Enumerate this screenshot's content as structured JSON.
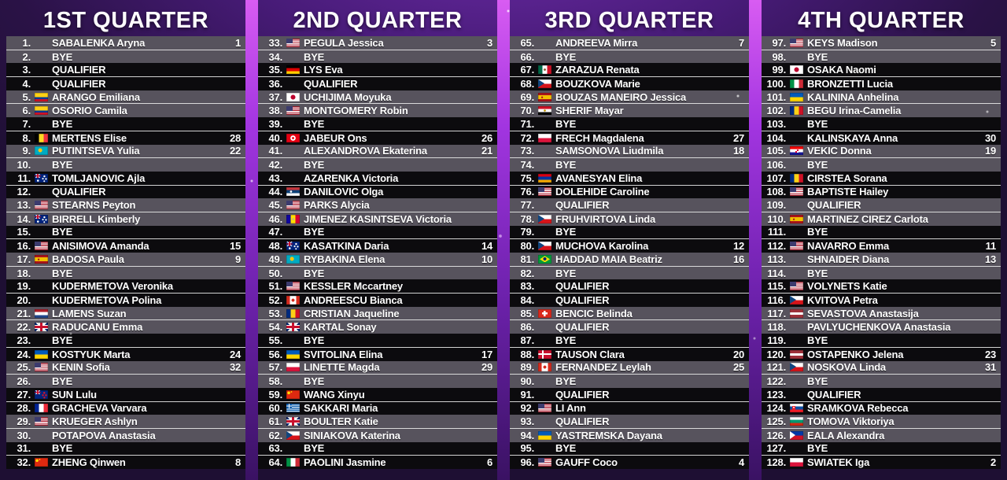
{
  "colors": {
    "row_light": "#57535d",
    "row_dark": "#0c0b0e",
    "pair_divider": "#e8e8e8",
    "background_purple": "#2a1246",
    "gap_beam_purple": "#a235e0",
    "text": "#ffffff"
  },
  "flag_countries": {
    "us": "United States",
    "gb": "Great Britain",
    "au": "Australia",
    "nz": "New Zealand",
    "co": "Colombia",
    "be": "Belgium",
    "kz": "Kazakhstan",
    "es": "Spain",
    "nl": "Netherlands",
    "ua": "Ukraine",
    "fr": "France",
    "cn": "China",
    "de": "Germany",
    "jp": "Japan",
    "tn": "Tunisia",
    "rs": "Serbia",
    "ad": "Andorra",
    "ca": "Canada",
    "ro": "Romania",
    "pl": "Poland",
    "gr": "Greece",
    "cz": "Czechia",
    "it": "Italy",
    "mx": "Mexico",
    "eg": "Egypt",
    "am": "Armenia",
    "br": "Brazil",
    "ch": "Switzerland",
    "dk": "Denmark",
    "hr": "Croatia",
    "lv": "Latvia",
    "sk": "Slovakia",
    "bg": "Bulgaria",
    "ph": "Philippines"
  },
  "board": {
    "quarters": [
      {
        "title": "1ST QUARTER",
        "rows": [
          {
            "pos": "1.",
            "flag": "",
            "name": "SABALENKA Aryna",
            "seed": "1"
          },
          {
            "pos": "2.",
            "flag": "",
            "name": "BYE",
            "seed": ""
          },
          {
            "pos": "3.",
            "flag": "",
            "name": "QUALIFIER",
            "seed": ""
          },
          {
            "pos": "4.",
            "flag": "",
            "name": "QUALIFIER",
            "seed": ""
          },
          {
            "pos": "5.",
            "flag": "co",
            "name": "ARANGO Emiliana",
            "seed": ""
          },
          {
            "pos": "6.",
            "flag": "co",
            "name": "OSORIO Camila",
            "seed": ""
          },
          {
            "pos": "7.",
            "flag": "",
            "name": "BYE",
            "seed": ""
          },
          {
            "pos": "8.",
            "flag": "be",
            "name": "MERTENS Elise",
            "seed": "28"
          },
          {
            "pos": "9.",
            "flag": "kz",
            "name": "PUTINTSEVA Yulia",
            "seed": "22"
          },
          {
            "pos": "10.",
            "flag": "",
            "name": "BYE",
            "seed": ""
          },
          {
            "pos": "11.",
            "flag": "au",
            "name": "TOMLJANOVIC Ajla",
            "seed": ""
          },
          {
            "pos": "12.",
            "flag": "",
            "name": "QUALIFIER",
            "seed": ""
          },
          {
            "pos": "13.",
            "flag": "us",
            "name": "STEARNS Peyton",
            "seed": ""
          },
          {
            "pos": "14.",
            "flag": "au",
            "name": "BIRRELL Kimberly",
            "seed": ""
          },
          {
            "pos": "15.",
            "flag": "",
            "name": "BYE",
            "seed": ""
          },
          {
            "pos": "16.",
            "flag": "us",
            "name": "ANISIMOVA Amanda",
            "seed": "15"
          },
          {
            "pos": "17.",
            "flag": "es",
            "name": "BADOSA Paula",
            "seed": "9"
          },
          {
            "pos": "18.",
            "flag": "",
            "name": "BYE",
            "seed": ""
          },
          {
            "pos": "19.",
            "flag": "",
            "name": "KUDERMETOVA Veronika",
            "seed": ""
          },
          {
            "pos": "20.",
            "flag": "",
            "name": "KUDERMETOVA Polina",
            "seed": ""
          },
          {
            "pos": "21.",
            "flag": "nl",
            "name": "LAMENS Suzan",
            "seed": ""
          },
          {
            "pos": "22.",
            "flag": "gb",
            "name": "RADUCANU Emma",
            "seed": ""
          },
          {
            "pos": "23.",
            "flag": "",
            "name": "BYE",
            "seed": ""
          },
          {
            "pos": "24.",
            "flag": "ua",
            "name": "KOSTYUK Marta",
            "seed": "24"
          },
          {
            "pos": "25.",
            "flag": "us",
            "name": "KENIN Sofia",
            "seed": "32"
          },
          {
            "pos": "26.",
            "flag": "",
            "name": "BYE",
            "seed": ""
          },
          {
            "pos": "27.",
            "flag": "nz",
            "name": "SUN Lulu",
            "seed": ""
          },
          {
            "pos": "28.",
            "flag": "fr",
            "name": "GRACHEVA Varvara",
            "seed": ""
          },
          {
            "pos": "29.",
            "flag": "us",
            "name": "KRUEGER Ashlyn",
            "seed": ""
          },
          {
            "pos": "30.",
            "flag": "",
            "name": "POTAPOVA Anastasia",
            "seed": ""
          },
          {
            "pos": "31.",
            "flag": "",
            "name": "BYE",
            "seed": ""
          },
          {
            "pos": "32.",
            "flag": "cn",
            "name": "ZHENG Qinwen",
            "seed": "8"
          }
        ]
      },
      {
        "title": "2ND QUARTER",
        "rows": [
          {
            "pos": "33.",
            "flag": "us",
            "name": "PEGULA Jessica",
            "seed": "3"
          },
          {
            "pos": "34.",
            "flag": "",
            "name": "BYE",
            "seed": ""
          },
          {
            "pos": "35.",
            "flag": "de",
            "name": "LYS Eva",
            "seed": ""
          },
          {
            "pos": "36.",
            "flag": "",
            "name": "QUALIFIER",
            "seed": ""
          },
          {
            "pos": "37.",
            "flag": "jp",
            "name": "UCHIJIMA Moyuka",
            "seed": ""
          },
          {
            "pos": "38.",
            "flag": "us",
            "name": "MONTGOMERY Robin",
            "seed": ""
          },
          {
            "pos": "39.",
            "flag": "",
            "name": "BYE",
            "seed": ""
          },
          {
            "pos": "40.",
            "flag": "tn",
            "name": "JABEUR Ons",
            "seed": "26"
          },
          {
            "pos": "41.",
            "flag": "",
            "name": "ALEXANDROVA Ekaterina",
            "seed": "21"
          },
          {
            "pos": "42.",
            "flag": "",
            "name": "BYE",
            "seed": ""
          },
          {
            "pos": "43.",
            "flag": "",
            "name": "AZARENKA Victoria",
            "seed": ""
          },
          {
            "pos": "44.",
            "flag": "rs",
            "name": "DANILOVIC Olga",
            "seed": ""
          },
          {
            "pos": "45.",
            "flag": "us",
            "name": "PARKS Alycia",
            "seed": ""
          },
          {
            "pos": "46.",
            "flag": "ad",
            "name": "JIMENEZ KASINTSEVA Victoria",
            "seed": ""
          },
          {
            "pos": "47.",
            "flag": "",
            "name": "BYE",
            "seed": ""
          },
          {
            "pos": "48.",
            "flag": "au",
            "name": "KASATKINA Daria",
            "seed": "14"
          },
          {
            "pos": "49.",
            "flag": "kz",
            "name": "RYBAKINA Elena",
            "seed": "10"
          },
          {
            "pos": "50.",
            "flag": "",
            "name": "BYE",
            "seed": ""
          },
          {
            "pos": "51.",
            "flag": "us",
            "name": "KESSLER Mccartney",
            "seed": ""
          },
          {
            "pos": "52.",
            "flag": "ca",
            "name": "ANDREESCU Bianca",
            "seed": ""
          },
          {
            "pos": "53.",
            "flag": "ro",
            "name": "CRISTIAN Jaqueline",
            "seed": ""
          },
          {
            "pos": "54.",
            "flag": "gb",
            "name": "KARTAL Sonay",
            "seed": ""
          },
          {
            "pos": "55.",
            "flag": "",
            "name": "BYE",
            "seed": ""
          },
          {
            "pos": "56.",
            "flag": "ua",
            "name": "SVITOLINA Elina",
            "seed": "17"
          },
          {
            "pos": "57.",
            "flag": "pl",
            "name": "LINETTE Magda",
            "seed": "29"
          },
          {
            "pos": "58.",
            "flag": "",
            "name": "BYE",
            "seed": ""
          },
          {
            "pos": "59.",
            "flag": "cn",
            "name": "WANG Xinyu",
            "seed": ""
          },
          {
            "pos": "60.",
            "flag": "gr",
            "name": "SAKKARI Maria",
            "seed": ""
          },
          {
            "pos": "61.",
            "flag": "gb",
            "name": "BOULTER Katie",
            "seed": ""
          },
          {
            "pos": "62.",
            "flag": "cz",
            "name": "SINIAKOVA Katerina",
            "seed": ""
          },
          {
            "pos": "63.",
            "flag": "",
            "name": "BYE",
            "seed": ""
          },
          {
            "pos": "64.",
            "flag": "it",
            "name": "PAOLINI Jasmine",
            "seed": "6"
          }
        ]
      },
      {
        "title": "3RD QUARTER",
        "rows": [
          {
            "pos": "65.",
            "flag": "",
            "name": "ANDREEVA Mirra",
            "seed": "7"
          },
          {
            "pos": "66.",
            "flag": "",
            "name": "BYE",
            "seed": ""
          },
          {
            "pos": "67.",
            "flag": "mx",
            "name": "ZARAZUA Renata",
            "seed": ""
          },
          {
            "pos": "68.",
            "flag": "cz",
            "name": "BOUZKOVA Marie",
            "seed": ""
          },
          {
            "pos": "69.",
            "flag": "es",
            "name": "BOUZAS MANEIRO Jessica",
            "seed": ""
          },
          {
            "pos": "70.",
            "flag": "eg",
            "name": "SHERIF Mayar",
            "seed": ""
          },
          {
            "pos": "71.",
            "flag": "",
            "name": "BYE",
            "seed": ""
          },
          {
            "pos": "72.",
            "flag": "pl",
            "name": "FRECH Magdalena",
            "seed": "27"
          },
          {
            "pos": "73.",
            "flag": "",
            "name": "SAMSONOVA Liudmila",
            "seed": "18"
          },
          {
            "pos": "74.",
            "flag": "",
            "name": "BYE",
            "seed": ""
          },
          {
            "pos": "75.",
            "flag": "am",
            "name": "AVANESYAN Elina",
            "seed": ""
          },
          {
            "pos": "76.",
            "flag": "us",
            "name": "DOLEHIDE Caroline",
            "seed": ""
          },
          {
            "pos": "77.",
            "flag": "",
            "name": "QUALIFIER",
            "seed": ""
          },
          {
            "pos": "78.",
            "flag": "cz",
            "name": "FRUHVIRTOVA Linda",
            "seed": ""
          },
          {
            "pos": "79.",
            "flag": "",
            "name": "BYE",
            "seed": ""
          },
          {
            "pos": "80.",
            "flag": "cz",
            "name": "MUCHOVA Karolina",
            "seed": "12"
          },
          {
            "pos": "81.",
            "flag": "br",
            "name": "HADDAD MAIA Beatriz",
            "seed": "16"
          },
          {
            "pos": "82.",
            "flag": "",
            "name": "BYE",
            "seed": ""
          },
          {
            "pos": "83.",
            "flag": "",
            "name": "QUALIFIER",
            "seed": ""
          },
          {
            "pos": "84.",
            "flag": "",
            "name": "QUALIFIER",
            "seed": ""
          },
          {
            "pos": "85.",
            "flag": "ch",
            "name": "BENCIC Belinda",
            "seed": ""
          },
          {
            "pos": "86.",
            "flag": "",
            "name": "QUALIFIER",
            "seed": ""
          },
          {
            "pos": "87.",
            "flag": "",
            "name": "BYE",
            "seed": ""
          },
          {
            "pos": "88.",
            "flag": "dk",
            "name": "TAUSON Clara",
            "seed": "20"
          },
          {
            "pos": "89.",
            "flag": "ca",
            "name": "FERNANDEZ Leylah",
            "seed": "25"
          },
          {
            "pos": "90.",
            "flag": "",
            "name": "BYE",
            "seed": ""
          },
          {
            "pos": "91.",
            "flag": "",
            "name": "QUALIFIER",
            "seed": ""
          },
          {
            "pos": "92.",
            "flag": "us",
            "name": "LI Ann",
            "seed": ""
          },
          {
            "pos": "93.",
            "flag": "",
            "name": "QUALIFIER",
            "seed": ""
          },
          {
            "pos": "94.",
            "flag": "ua",
            "name": "YASTREMSKA Dayana",
            "seed": ""
          },
          {
            "pos": "95.",
            "flag": "",
            "name": "BYE",
            "seed": ""
          },
          {
            "pos": "96.",
            "flag": "us",
            "name": "GAUFF Coco",
            "seed": "4"
          }
        ]
      },
      {
        "title": "4TH QUARTER",
        "rows": [
          {
            "pos": "97.",
            "flag": "us",
            "name": "KEYS Madison",
            "seed": "5"
          },
          {
            "pos": "98.",
            "flag": "",
            "name": "BYE",
            "seed": ""
          },
          {
            "pos": "99.",
            "flag": "jp",
            "name": "OSAKA Naomi",
            "seed": ""
          },
          {
            "pos": "100.",
            "flag": "it",
            "name": "BRONZETTI Lucia",
            "seed": ""
          },
          {
            "pos": "101.",
            "flag": "ua",
            "name": "KALININA Anhelina",
            "seed": ""
          },
          {
            "pos": "102.",
            "flag": "ro",
            "name": "BEGU Irina-Camelia",
            "seed": ""
          },
          {
            "pos": "103.",
            "flag": "",
            "name": "BYE",
            "seed": ""
          },
          {
            "pos": "104.",
            "flag": "",
            "name": "KALINSKAYA Anna",
            "seed": "30"
          },
          {
            "pos": "105.",
            "flag": "hr",
            "name": "VEKIC Donna",
            "seed": "19"
          },
          {
            "pos": "106.",
            "flag": "",
            "name": "BYE",
            "seed": ""
          },
          {
            "pos": "107.",
            "flag": "ro",
            "name": "CIRSTEA Sorana",
            "seed": ""
          },
          {
            "pos": "108.",
            "flag": "us",
            "name": "BAPTISTE Hailey",
            "seed": ""
          },
          {
            "pos": "109.",
            "flag": "",
            "name": "QUALIFIER",
            "seed": ""
          },
          {
            "pos": "110.",
            "flag": "es",
            "name": "MARTINEZ CIREZ Carlota",
            "seed": ""
          },
          {
            "pos": "111.",
            "flag": "",
            "name": "BYE",
            "seed": ""
          },
          {
            "pos": "112.",
            "flag": "us",
            "name": "NAVARRO Emma",
            "seed": "11"
          },
          {
            "pos": "113.",
            "flag": "",
            "name": "SHNAIDER Diana",
            "seed": "13"
          },
          {
            "pos": "114.",
            "flag": "",
            "name": "BYE",
            "seed": ""
          },
          {
            "pos": "115.",
            "flag": "us",
            "name": "VOLYNETS Katie",
            "seed": ""
          },
          {
            "pos": "116.",
            "flag": "cz",
            "name": "KVITOVA Petra",
            "seed": ""
          },
          {
            "pos": "117.",
            "flag": "lv",
            "name": "SEVASTOVA Anastasija",
            "seed": ""
          },
          {
            "pos": "118.",
            "flag": "",
            "name": "PAVLYUCHENKOVA Anastasia",
            "seed": ""
          },
          {
            "pos": "119.",
            "flag": "",
            "name": "BYE",
            "seed": ""
          },
          {
            "pos": "120.",
            "flag": "lv",
            "name": "OSTAPENKO Jelena",
            "seed": "23"
          },
          {
            "pos": "121.",
            "flag": "cz",
            "name": "NOSKOVA Linda",
            "seed": "31"
          },
          {
            "pos": "122.",
            "flag": "",
            "name": "BYE",
            "seed": ""
          },
          {
            "pos": "123.",
            "flag": "",
            "name": "QUALIFIER",
            "seed": ""
          },
          {
            "pos": "124.",
            "flag": "sk",
            "name": "SRAMKOVA Rebecca",
            "seed": ""
          },
          {
            "pos": "125.",
            "flag": "bg",
            "name": "TOMOVA Viktoriya",
            "seed": ""
          },
          {
            "pos": "126.",
            "flag": "ph",
            "name": "EALA Alexandra",
            "seed": ""
          },
          {
            "pos": "127.",
            "flag": "",
            "name": "BYE",
            "seed": ""
          },
          {
            "pos": "128.",
            "flag": "pl",
            "name": "SWIATEK Iga",
            "seed": "2"
          }
        ]
      }
    ]
  }
}
